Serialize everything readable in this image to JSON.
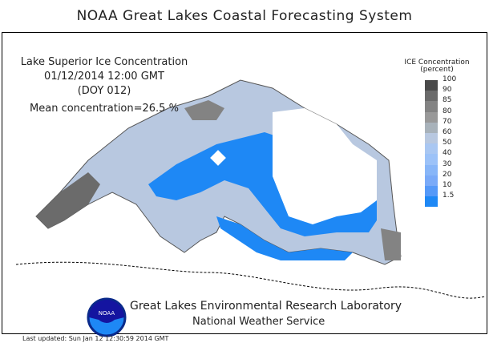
{
  "title": "NOAA Great Lakes Coastal Forecasting System",
  "info": {
    "line1": "Lake Superior Ice Concentration",
    "line2": "01/12/2014 12:00 GMT",
    "line3": "(DOY 012)",
    "line4": "Mean concentration=26.5 %"
  },
  "legend": {
    "title": "ICE Concentration",
    "units": "(percent)",
    "labels": [
      "100",
      "90",
      "85",
      "80",
      "70",
      "60",
      "50",
      "40",
      "30",
      "20",
      "10",
      "1.5"
    ],
    "colors": [
      "#4a4a4a",
      "#6b6b6b",
      "#838383",
      "#999999",
      "#a8b2ba",
      "#b8c8e0",
      "#a9c7f2",
      "#9cc2f8",
      "#88b6f8",
      "#7aaaf8",
      "#5599f8",
      "#1e88f5"
    ]
  },
  "footer": {
    "lab": "Great Lakes Environmental Research Laboratory",
    "nws": "National Weather Service",
    "updated": "Last updated: Sun Jan 12 12:30:59 2014 GMT",
    "logo": "NOAA"
  }
}
